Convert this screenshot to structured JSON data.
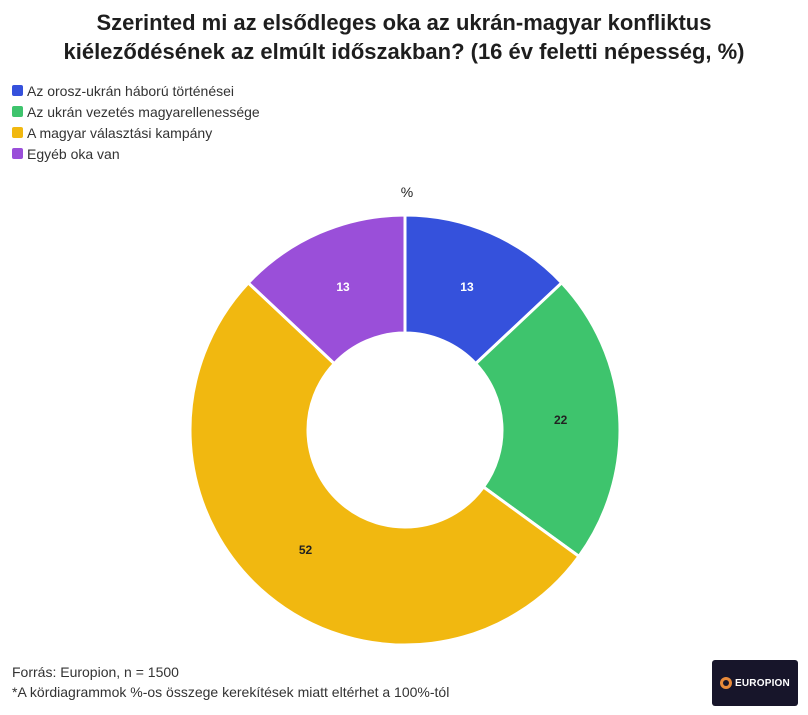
{
  "chart_data": {
    "type": "pie",
    "variant": "donut",
    "title_line1": "Szerinted mi az elsődleges oka az ukrán-magyar konfliktus",
    "title_line2": "kiéleződésének az elmúlt időszakban? (16 év feletti népesség, %)",
    "unit_label": "%",
    "legend_position": "top-left",
    "slices": [
      {
        "label": "Az orosz-ukrán háború történései",
        "value": 13,
        "color": "#3551dc",
        "label_color": "#ffffff"
      },
      {
        "label": "Az ukrán vezetés magyarellenessége",
        "value": 22,
        "color": "#3ec46d",
        "label_color": "#222222"
      },
      {
        "label": "A magyar választási kampány",
        "value": 52,
        "color": "#f1b810",
        "label_color": "#222222"
      },
      {
        "label": "Egyéb oka van",
        "value": 13,
        "color": "#9a4fd9",
        "label_color": "#ffffff"
      }
    ]
  },
  "footer": {
    "source": "Forrás: Europion, n = 1500",
    "note": "*A kördiagrammok %-os összege kerekítések miatt eltérhet a 100%-tól"
  },
  "logo": {
    "text": "EUROPION"
  }
}
